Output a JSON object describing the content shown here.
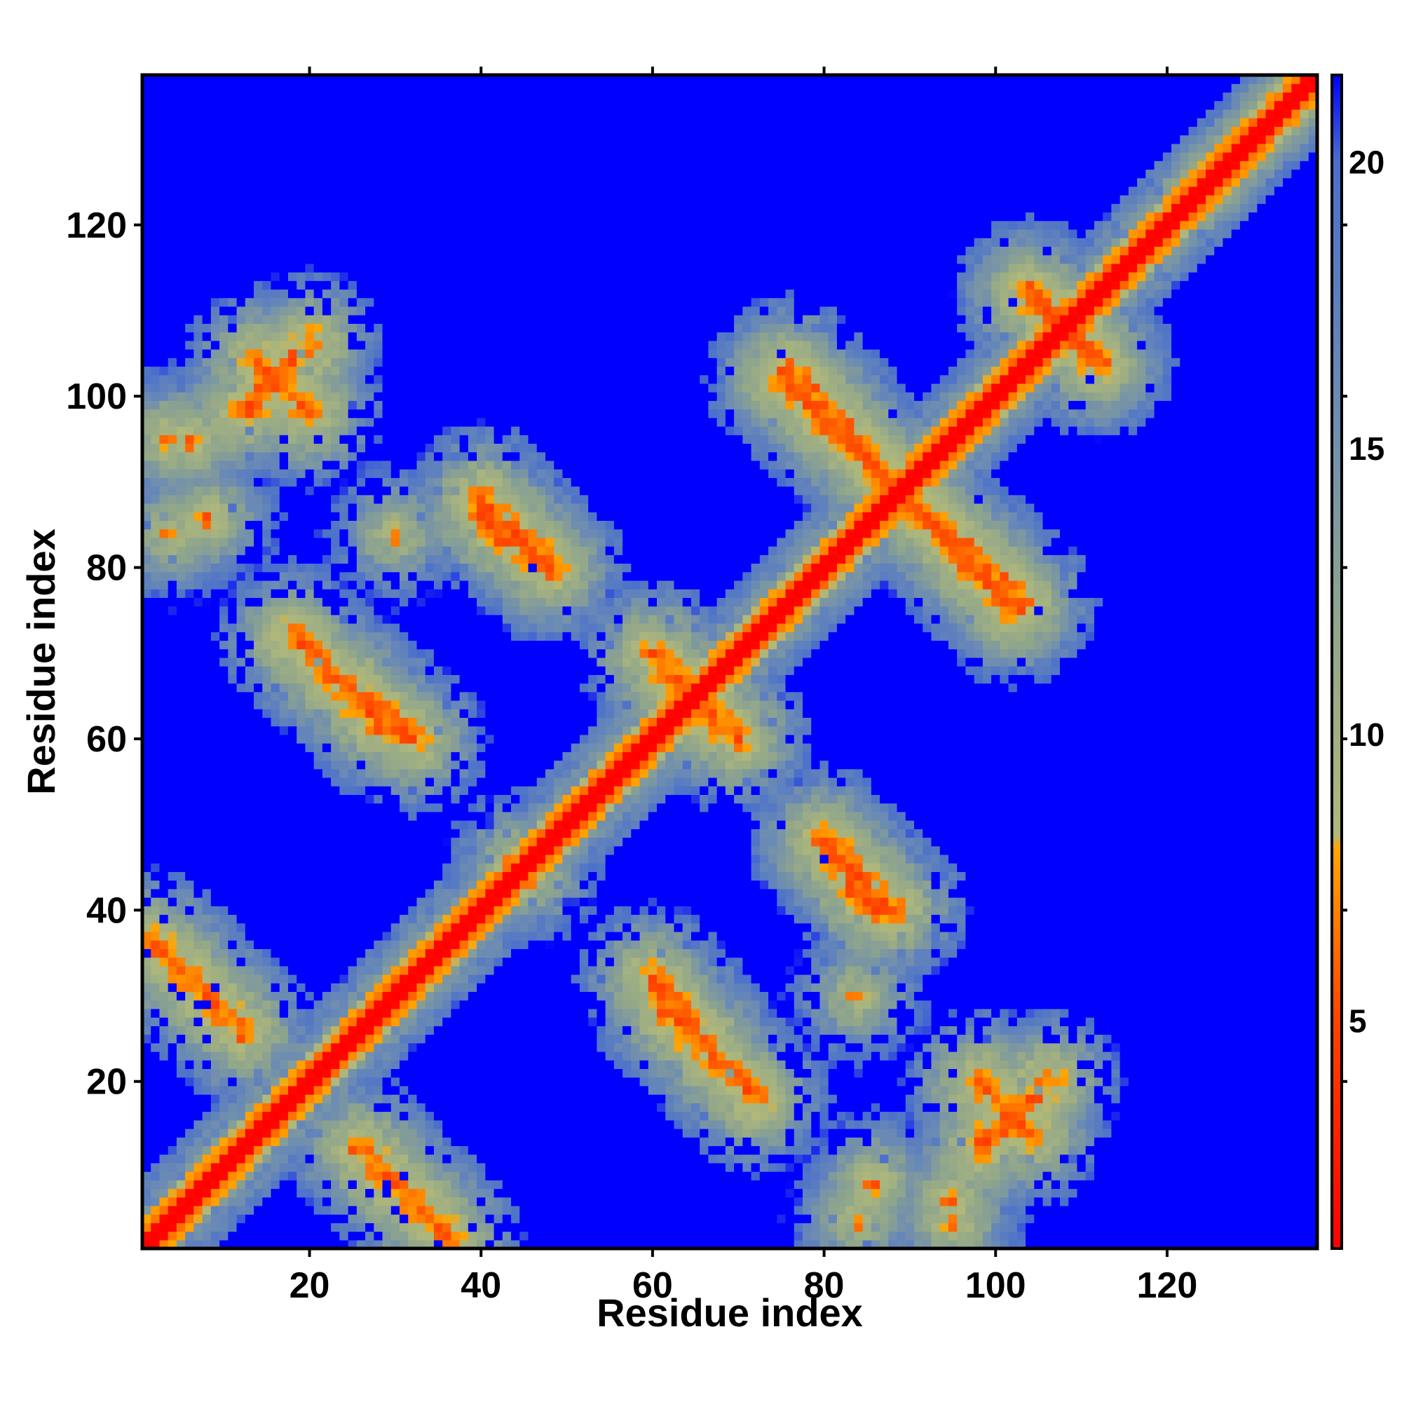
{
  "chart_data": {
    "type": "heatmap",
    "title": "",
    "xlabel": "Residue index",
    "ylabel": "Residue index",
    "n_residues": 137,
    "xlim": [
      1,
      137
    ],
    "ylim": [
      1,
      137
    ],
    "x_ticks": [
      20,
      40,
      60,
      80,
      100,
      120
    ],
    "y_ticks": [
      20,
      40,
      60,
      80,
      100,
      120
    ],
    "x_tick_labels": [
      "20",
      "40",
      "60",
      "80",
      "100",
      "120"
    ],
    "y_tick_labels": [
      "20",
      "40",
      "60",
      "80",
      "100",
      "120"
    ],
    "colorbar": {
      "range": [
        1,
        21.5
      ],
      "ticks": [
        5,
        10,
        15,
        20
      ],
      "tick_labels": [
        "5",
        "10",
        "15",
        "20"
      ],
      "stops": [
        {
          "value": 1,
          "color": "#ff0000"
        },
        {
          "value": 5,
          "color": "#ff4400"
        },
        {
          "value": 8,
          "color": "#ffa500"
        },
        {
          "value": 8.2,
          "color": "#b0b87a"
        },
        {
          "value": 12,
          "color": "#8fa58c"
        },
        {
          "value": 16,
          "color": "#6a8ab5"
        },
        {
          "value": 20,
          "color": "#4a6fcc"
        },
        {
          "value": 21.5,
          "color": "#0000ff"
        }
      ]
    },
    "background_value": 21.5,
    "diagonal_band": {
      "center_value": 1,
      "half_width": 1.5
    },
    "contact_features": [
      {
        "type": "antiparallel",
        "from": [
          2,
          36
        ],
        "to": [
          12,
          26
        ],
        "min_value": 6
      },
      {
        "type": "antiparallel",
        "from": [
          14,
          104
        ],
        "to": [
          20,
          98
        ],
        "min_value": 6
      },
      {
        "type": "antiparallel",
        "from": [
          25,
          66
        ],
        "to": [
          32,
          60
        ],
        "min_value": 6
      },
      {
        "type": "antiparallel",
        "from": [
          40,
          86
        ],
        "to": [
          48,
          80
        ],
        "min_value": 6
      },
      {
        "type": "antiparallel",
        "from": [
          60,
          70
        ],
        "to": [
          67,
          62
        ],
        "min_value": 6
      },
      {
        "type": "antiparallel",
        "from": [
          75,
          102
        ],
        "to": [
          88,
          90
        ],
        "min_value": 6
      },
      {
        "type": "antiparallel",
        "from": [
          62,
          28
        ],
        "to": [
          72,
          18
        ],
        "min_value": 6
      },
      {
        "type": "antiparallel",
        "from": [
          80,
          48
        ],
        "to": [
          88,
          40
        ],
        "min_value": 6
      },
      {
        "type": "antiparallel",
        "from": [
          92,
          86
        ],
        "to": [
          103,
          76
        ],
        "min_value": 6
      },
      {
        "type": "antiparallel",
        "from": [
          98,
          12
        ],
        "to": [
          106,
          20
        ],
        "min_value": 6
      },
      {
        "type": "antiparallel",
        "from": [
          104,
          112
        ],
        "to": [
          112,
          104
        ],
        "min_value": 6
      },
      {
        "type": "blob",
        "at": [
          4,
          95
        ],
        "min_value": 7
      },
      {
        "type": "blob",
        "at": [
          8,
          86
        ],
        "min_value": 7
      },
      {
        "type": "blob",
        "at": [
          30,
          84
        ],
        "min_value": 8
      },
      {
        "type": "blob",
        "at": [
          44,
          46
        ],
        "min_value": 8
      },
      {
        "type": "blob",
        "at": [
          84,
          4
        ],
        "min_value": 8
      },
      {
        "type": "blob",
        "at": [
          95,
          6
        ],
        "min_value": 7
      }
    ]
  }
}
